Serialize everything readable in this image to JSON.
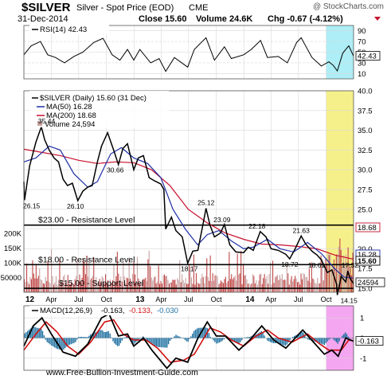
{
  "header": {
    "symbol": "$SILVER",
    "description": "Silver - Spot Price (EOD)",
    "exchange": "CME",
    "date": "31-Dec-2014",
    "close_text": "Close 15.60",
    "volume_text": "Volume 24.6K",
    "chg_text": "Chg -0.67 (-4.12%)",
    "credit": "@ StockCharts.com"
  },
  "colors": {
    "price_line": "#000000",
    "ma50": "#1f2fa6",
    "ma200": "#c8102e",
    "volume_up": "#c9a3a3",
    "volume_down": "#c04848",
    "macd_line": "#000000",
    "macd_signal": "#d01010",
    "macd_hist": "#1c6fa0",
    "highlight_cyan": "#aeeef6",
    "highlight_yellow": "#f6f08a",
    "highlight_magenta": "#f4a6f0",
    "resistance": "#000000",
    "rsi_line": "#000000"
  },
  "rsi": {
    "legend": "RSI(14) 42.43",
    "current_label": "42.43",
    "ticks": [
      "90",
      "70",
      "50",
      "30",
      "10"
    ]
  },
  "price_panel": {
    "legend_price": "$SILVER (Daily) 15.60 (31 Dec)",
    "legend_ma50": "MA(50) 16.28",
    "legend_ma200": "MA(200) 18.68",
    "legend_volume": "Volume 24,594",
    "ticks": [
      "40.0",
      "37.5",
      "35.0",
      "32.5",
      "30.0",
      "27.5",
      "25.0",
      "22.5",
      "20.0",
      "17.5",
      "15.0"
    ],
    "volume_ticks": [
      "200K",
      "150K",
      "100K",
      "50000"
    ],
    "value_labels": {
      "ma200": "18.68",
      "ma50": "16.28",
      "price": "15.60",
      "volume": "24594"
    },
    "levels": [
      {
        "label": "$23.00 - Resistance Level",
        "value": 23.0
      },
      {
        "label": "$18.00 - Resistance Level",
        "value": 18.0
      },
      {
        "label": "$15.00 - Support Level",
        "value": 15.0
      }
    ],
    "annotations": [
      {
        "text": "26.15"
      },
      {
        "text": "35.44"
      },
      {
        "text": "26.10"
      },
      {
        "text": "30.66"
      },
      {
        "text": "25.12"
      },
      {
        "text": "23.09"
      },
      {
        "text": "22.18"
      },
      {
        "text": "21.63"
      },
      {
        "text": "18.17"
      },
      {
        "text": "18.72"
      },
      {
        "text": "18.61"
      },
      {
        "text": "17.32"
      },
      {
        "text": "14.15"
      }
    ]
  },
  "macd": {
    "legend_name": "MACD(12,26,9)",
    "legend_macd": "-0.163,",
    "legend_signal": "-0.133,",
    "legend_hist": "-0.030",
    "current_label": "-0.163",
    "ticks": [
      "1",
      "0",
      "-1"
    ]
  },
  "x_axis": {
    "labels": [
      "12",
      "Apr",
      "Jul",
      "Oct",
      "13",
      "Apr",
      "Jul",
      "Oct",
      "14",
      "Apr",
      "Jul",
      "Oct"
    ]
  },
  "watermark": "www.Free-Bullion-Investment-Guide.com",
  "chart_data": {
    "type": "line",
    "title": "$SILVER Silver - Spot Price (EOD) CME",
    "x_range": [
      "2012-01-01",
      "2014-12-31"
    ],
    "price": {
      "ylim": [
        14.5,
        40.0
      ],
      "points": [
        [
          "2012-01-01",
          28.5
        ],
        [
          "2012-01-03",
          26.15
        ],
        [
          "2012-01-20",
          30.5
        ],
        [
          "2012-02-10",
          33.5
        ],
        [
          "2012-02-28",
          35.44
        ],
        [
          "2012-03-10",
          33.8
        ],
        [
          "2012-03-25",
          32.5
        ],
        [
          "2012-04-10",
          31.5
        ],
        [
          "2012-04-25",
          31.0
        ],
        [
          "2012-05-10",
          28.8
        ],
        [
          "2012-05-25",
          28.0
        ],
        [
          "2012-06-10",
          28.3
        ],
        [
          "2012-06-28",
          26.1
        ],
        [
          "2012-07-15",
          27.3
        ],
        [
          "2012-07-31",
          27.8
        ],
        [
          "2012-08-15",
          28.0
        ],
        [
          "2012-09-01",
          31.0
        ],
        [
          "2012-09-15",
          33.0
        ],
        [
          "2012-10-05",
          34.7
        ],
        [
          "2012-10-25",
          32.5
        ],
        [
          "2012-11-10",
          30.66
        ],
        [
          "2012-11-25",
          32.7
        ],
        [
          "2012-12-10",
          33.3
        ],
        [
          "2012-12-31",
          30.0
        ],
        [
          "2013-01-15",
          31.5
        ],
        [
          "2013-02-01",
          31.8
        ],
        [
          "2013-02-20",
          29.0
        ],
        [
          "2013-03-10",
          28.6
        ],
        [
          "2013-03-31",
          28.2
        ],
        [
          "2013-04-10",
          27.5
        ],
        [
          "2013-04-16",
          22.5
        ],
        [
          "2013-05-05",
          24.0
        ],
        [
          "2013-05-20",
          22.3
        ],
        [
          "2013-06-10",
          21.5
        ],
        [
          "2013-06-28",
          18.17
        ],
        [
          "2013-07-15",
          19.7
        ],
        [
          "2013-08-01",
          19.8
        ],
        [
          "2013-08-20",
          23.5
        ],
        [
          "2013-08-28",
          25.12
        ],
        [
          "2013-09-10",
          23.0
        ],
        [
          "2013-09-25",
          21.5
        ],
        [
          "2013-10-15",
          22.0
        ],
        [
          "2013-10-28",
          23.09
        ],
        [
          "2013-11-15",
          20.5
        ],
        [
          "2013-12-05",
          19.6
        ],
        [
          "2013-12-31",
          19.5
        ],
        [
          "2014-01-15",
          20.2
        ],
        [
          "2014-02-01",
          19.8
        ],
        [
          "2014-02-24",
          22.18
        ],
        [
          "2014-03-15",
          21.5
        ],
        [
          "2014-04-01",
          20.0
        ],
        [
          "2014-04-25",
          19.8
        ],
        [
          "2014-05-20",
          19.3
        ],
        [
          "2014-06-02",
          18.72
        ],
        [
          "2014-06-20",
          20.0
        ],
        [
          "2014-07-10",
          21.63
        ],
        [
          "2014-07-25",
          20.6
        ],
        [
          "2014-08-15",
          19.7
        ],
        [
          "2014-09-01",
          19.2
        ],
        [
          "2014-09-15",
          18.61
        ],
        [
          "2014-10-05",
          17.0
        ],
        [
          "2014-10-20",
          17.32
        ],
        [
          "2014-11-05",
          15.5
        ],
        [
          "2014-11-07",
          14.15
        ],
        [
          "2014-11-20",
          16.5
        ],
        [
          "2014-12-05",
          15.8
        ],
        [
          "2014-12-12",
          17.2
        ],
        [
          "2014-12-20",
          16.2
        ],
        [
          "2014-12-31",
          15.6
        ]
      ]
    },
    "ma50": {
      "points": [
        [
          "2012-01-01",
          31.0
        ],
        [
          "2012-02-10",
          31.5
        ],
        [
          "2012-03-25",
          33.0
        ],
        [
          "2012-05-01",
          32.5
        ],
        [
          "2012-06-15",
          29.5
        ],
        [
          "2012-07-31",
          27.8
        ],
        [
          "2012-09-01",
          28.5
        ],
        [
          "2012-10-15",
          32.0
        ],
        [
          "2012-11-20",
          32.8
        ],
        [
          "2012-12-31",
          31.5
        ],
        [
          "2013-02-15",
          30.8
        ],
        [
          "2013-03-31",
          29.0
        ],
        [
          "2013-05-10",
          25.0
        ],
        [
          "2013-06-20",
          22.5
        ],
        [
          "2013-07-31",
          20.5
        ],
        [
          "2013-09-01",
          21.8
        ],
        [
          "2013-10-10",
          22.3
        ],
        [
          "2013-11-20",
          21.0
        ],
        [
          "2013-12-31",
          20.0
        ],
        [
          "2014-02-01",
          20.2
        ],
        [
          "2014-03-20",
          21.2
        ],
        [
          "2014-05-01",
          20.0
        ],
        [
          "2014-06-15",
          19.6
        ],
        [
          "2014-07-31",
          20.8
        ],
        [
          "2014-09-15",
          19.4
        ],
        [
          "2014-10-31",
          17.4
        ],
        [
          "2014-11-30",
          16.4
        ],
        [
          "2014-12-31",
          16.28
        ]
      ]
    },
    "ma200": {
      "points": [
        [
          "2012-01-01",
          32.6
        ],
        [
          "2012-03-01",
          32.2
        ],
        [
          "2012-05-01",
          31.8
        ],
        [
          "2012-07-01",
          31.2
        ],
        [
          "2012-09-01",
          30.8
        ],
        [
          "2012-11-01",
          31.0
        ],
        [
          "2012-12-31",
          30.9
        ],
        [
          "2013-02-28",
          30.0
        ],
        [
          "2013-04-30",
          28.0
        ],
        [
          "2013-06-30",
          25.0
        ],
        [
          "2013-08-31",
          23.3
        ],
        [
          "2013-10-31",
          22.0
        ],
        [
          "2013-12-31",
          21.2
        ],
        [
          "2014-02-28",
          20.6
        ],
        [
          "2014-04-30",
          20.5
        ],
        [
          "2014-06-30",
          20.3
        ],
        [
          "2014-08-31",
          20.0
        ],
        [
          "2014-10-31",
          19.2
        ],
        [
          "2014-12-31",
          18.68
        ]
      ]
    },
    "rsi": {
      "ylim": [
        0,
        100
      ],
      "points": [
        [
          "2012-01-01",
          45
        ],
        [
          "2012-01-25",
          62
        ],
        [
          "2012-02-25",
          70
        ],
        [
          "2012-03-20",
          45
        ],
        [
          "2012-04-15",
          40
        ],
        [
          "2012-05-15",
          30
        ],
        [
          "2012-06-15",
          42
        ],
        [
          "2012-07-15",
          50
        ],
        [
          "2012-08-20",
          68
        ],
        [
          "2012-09-20",
          76
        ],
        [
          "2012-10-20",
          45
        ],
        [
          "2012-11-15",
          35
        ],
        [
          "2012-12-10",
          55
        ],
        [
          "2012-12-31",
          35
        ],
        [
          "2013-01-20",
          55
        ],
        [
          "2013-02-25",
          30
        ],
        [
          "2013-03-25",
          38
        ],
        [
          "2013-04-16",
          14
        ],
        [
          "2013-05-15",
          40
        ],
        [
          "2013-06-28",
          22
        ],
        [
          "2013-07-20",
          55
        ],
        [
          "2013-08-28",
          77
        ],
        [
          "2013-09-25",
          35
        ],
        [
          "2013-10-28",
          60
        ],
        [
          "2013-11-20",
          38
        ],
        [
          "2013-12-31",
          45
        ],
        [
          "2014-01-25",
          55
        ],
        [
          "2014-02-25",
          72
        ],
        [
          "2014-03-20",
          40
        ],
        [
          "2014-04-25",
          42
        ],
        [
          "2014-05-25",
          30
        ],
        [
          "2014-06-25",
          68
        ],
        [
          "2014-07-10",
          77
        ],
        [
          "2014-08-15",
          40
        ],
        [
          "2014-09-15",
          24
        ],
        [
          "2014-10-10",
          32
        ],
        [
          "2014-10-25",
          25
        ],
        [
          "2014-11-07",
          15
        ],
        [
          "2014-11-25",
          48
        ],
        [
          "2014-12-05",
          55
        ],
        [
          "2014-12-15",
          62
        ],
        [
          "2014-12-31",
          42.43
        ]
      ]
    },
    "macd": {
      "ylim": [
        -1.6,
        1.6
      ],
      "macd_points": [
        [
          "2012-01-01",
          -0.4
        ],
        [
          "2012-02-01",
          0.6
        ],
        [
          "2012-03-01",
          1.0
        ],
        [
          "2012-04-01",
          0.2
        ],
        [
          "2012-05-10",
          -0.7
        ],
        [
          "2012-06-20",
          -0.9
        ],
        [
          "2012-07-31",
          -0.3
        ],
        [
          "2012-09-15",
          1.0
        ],
        [
          "2012-10-10",
          1.2
        ],
        [
          "2012-11-10",
          0.1
        ],
        [
          "2012-12-10",
          0.2
        ],
        [
          "2012-12-31",
          -0.4
        ],
        [
          "2013-02-01",
          0.0
        ],
        [
          "2013-03-01",
          -0.6
        ],
        [
          "2013-04-20",
          -1.5
        ],
        [
          "2013-05-20",
          -1.0
        ],
        [
          "2013-06-28",
          -1.2
        ],
        [
          "2013-08-01",
          0.0
        ],
        [
          "2013-09-01",
          0.8
        ],
        [
          "2013-10-01",
          0.1
        ],
        [
          "2013-11-01",
          0.1
        ],
        [
          "2013-12-15",
          -0.6
        ],
        [
          "2014-01-20",
          -0.1
        ],
        [
          "2014-03-01",
          0.6
        ],
        [
          "2014-04-10",
          -0.1
        ],
        [
          "2014-05-20",
          -0.5
        ],
        [
          "2014-07-15",
          0.4
        ],
        [
          "2014-08-20",
          -0.2
        ],
        [
          "2014-09-25",
          -0.8
        ],
        [
          "2014-10-20",
          -0.6
        ],
        [
          "2014-11-10",
          -0.9
        ],
        [
          "2014-12-05",
          0.0
        ],
        [
          "2014-12-31",
          -0.163
        ]
      ],
      "signal_points": [
        [
          "2012-01-01",
          -0.6
        ],
        [
          "2012-02-10",
          0.2
        ],
        [
          "2012-03-15",
          0.8
        ],
        [
          "2012-04-20",
          0.3
        ],
        [
          "2012-05-25",
          -0.4
        ],
        [
          "2012-07-01",
          -0.8
        ],
        [
          "2012-08-10",
          -0.2
        ],
        [
          "2012-09-25",
          0.8
        ],
        [
          "2012-10-25",
          0.9
        ],
        [
          "2012-11-25",
          0.2
        ],
        [
          "2012-12-31",
          -0.1
        ],
        [
          "2013-02-10",
          -0.1
        ],
        [
          "2013-03-20",
          -0.5
        ],
        [
          "2013-05-01",
          -1.2
        ],
        [
          "2013-06-15",
          -1.1
        ],
        [
          "2013-07-20",
          -0.8
        ],
        [
          "2013-09-10",
          0.5
        ],
        [
          "2013-10-15",
          0.3
        ],
        [
          "2013-11-20",
          -0.1
        ],
        [
          "2013-12-31",
          -0.4
        ],
        [
          "2014-02-10",
          0.1
        ],
        [
          "2014-03-20",
          0.4
        ],
        [
          "2014-04-25",
          0.0
        ],
        [
          "2014-06-10",
          -0.2
        ],
        [
          "2014-07-31",
          0.2
        ],
        [
          "2014-09-10",
          -0.3
        ],
        [
          "2014-10-10",
          -0.6
        ],
        [
          "2014-11-20",
          -0.6
        ],
        [
          "2014-12-15",
          -0.1
        ],
        [
          "2014-12-31",
          -0.133
        ]
      ]
    },
    "volume": {
      "ylim": [
        0,
        200000
      ],
      "last": 24594
    }
  }
}
